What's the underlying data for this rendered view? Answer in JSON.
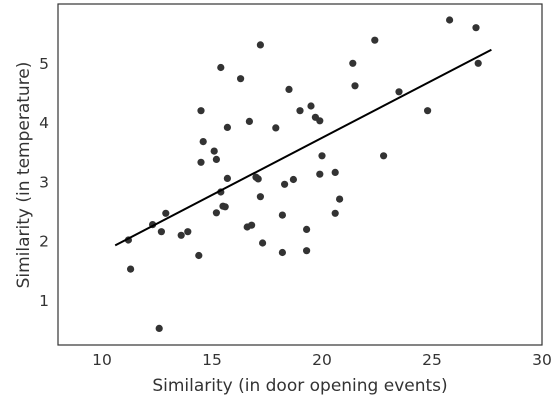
{
  "chart_data": {
    "type": "scatter",
    "title": "",
    "xlabel": "Similarity (in door opening events)",
    "ylabel": "Similarity (in temperature)",
    "xlim": [
      8,
      30
    ],
    "ylim": [
      0.25,
      6.0
    ],
    "x_ticks": [
      10,
      15,
      20,
      25,
      30
    ],
    "y_ticks": [
      1,
      2,
      3,
      4,
      5
    ],
    "grid": false,
    "legend": "none",
    "colors": {
      "points": "#333333",
      "line": "#000000",
      "frame": "#333333"
    },
    "points": [
      {
        "x": 11.2,
        "y": 2.02
      },
      {
        "x": 11.3,
        "y": 1.53
      },
      {
        "x": 12.6,
        "y": 0.53
      },
      {
        "x": 12.3,
        "y": 2.28
      },
      {
        "x": 12.7,
        "y": 2.16
      },
      {
        "x": 12.9,
        "y": 2.47
      },
      {
        "x": 13.6,
        "y": 2.1
      },
      {
        "x": 13.9,
        "y": 2.16
      },
      {
        "x": 14.4,
        "y": 1.76
      },
      {
        "x": 14.5,
        "y": 4.2
      },
      {
        "x": 14.5,
        "y": 3.33
      },
      {
        "x": 14.6,
        "y": 3.68
      },
      {
        "x": 15.1,
        "y": 3.52
      },
      {
        "x": 15.2,
        "y": 3.38
      },
      {
        "x": 15.2,
        "y": 2.48
      },
      {
        "x": 15.4,
        "y": 4.93
      },
      {
        "x": 15.4,
        "y": 2.83
      },
      {
        "x": 15.5,
        "y": 2.59
      },
      {
        "x": 15.6,
        "y": 2.58
      },
      {
        "x": 15.7,
        "y": 3.92
      },
      {
        "x": 15.7,
        "y": 3.06
      },
      {
        "x": 16.3,
        "y": 4.74
      },
      {
        "x": 16.6,
        "y": 2.24
      },
      {
        "x": 16.7,
        "y": 4.02
      },
      {
        "x": 16.8,
        "y": 2.27
      },
      {
        "x": 17.0,
        "y": 3.08
      },
      {
        "x": 17.1,
        "y": 3.05
      },
      {
        "x": 17.2,
        "y": 2.75
      },
      {
        "x": 17.2,
        "y": 5.31
      },
      {
        "x": 17.3,
        "y": 1.97
      },
      {
        "x": 17.9,
        "y": 3.91
      },
      {
        "x": 18.2,
        "y": 2.44
      },
      {
        "x": 18.2,
        "y": 1.81
      },
      {
        "x": 18.3,
        "y": 2.96
      },
      {
        "x": 18.5,
        "y": 4.56
      },
      {
        "x": 18.7,
        "y": 3.04
      },
      {
        "x": 19.0,
        "y": 4.2
      },
      {
        "x": 19.3,
        "y": 2.2
      },
      {
        "x": 19.3,
        "y": 1.84
      },
      {
        "x": 19.5,
        "y": 4.28
      },
      {
        "x": 19.7,
        "y": 4.09
      },
      {
        "x": 19.9,
        "y": 3.13
      },
      {
        "x": 19.9,
        "y": 4.03
      },
      {
        "x": 20.0,
        "y": 3.44
      },
      {
        "x": 20.6,
        "y": 3.16
      },
      {
        "x": 20.6,
        "y": 2.47
      },
      {
        "x": 20.8,
        "y": 2.71
      },
      {
        "x": 21.4,
        "y": 5.0
      },
      {
        "x": 21.5,
        "y": 4.62
      },
      {
        "x": 22.4,
        "y": 5.39
      },
      {
        "x": 22.8,
        "y": 3.44
      },
      {
        "x": 23.5,
        "y": 4.52
      },
      {
        "x": 24.8,
        "y": 4.2
      },
      {
        "x": 25.8,
        "y": 5.73
      },
      {
        "x": 27.0,
        "y": 5.6
      },
      {
        "x": 27.1,
        "y": 5.0
      }
    ],
    "trend_line": {
      "x": [
        10.6,
        27.7
      ],
      "y": [
        1.93,
        5.23
      ]
    }
  }
}
